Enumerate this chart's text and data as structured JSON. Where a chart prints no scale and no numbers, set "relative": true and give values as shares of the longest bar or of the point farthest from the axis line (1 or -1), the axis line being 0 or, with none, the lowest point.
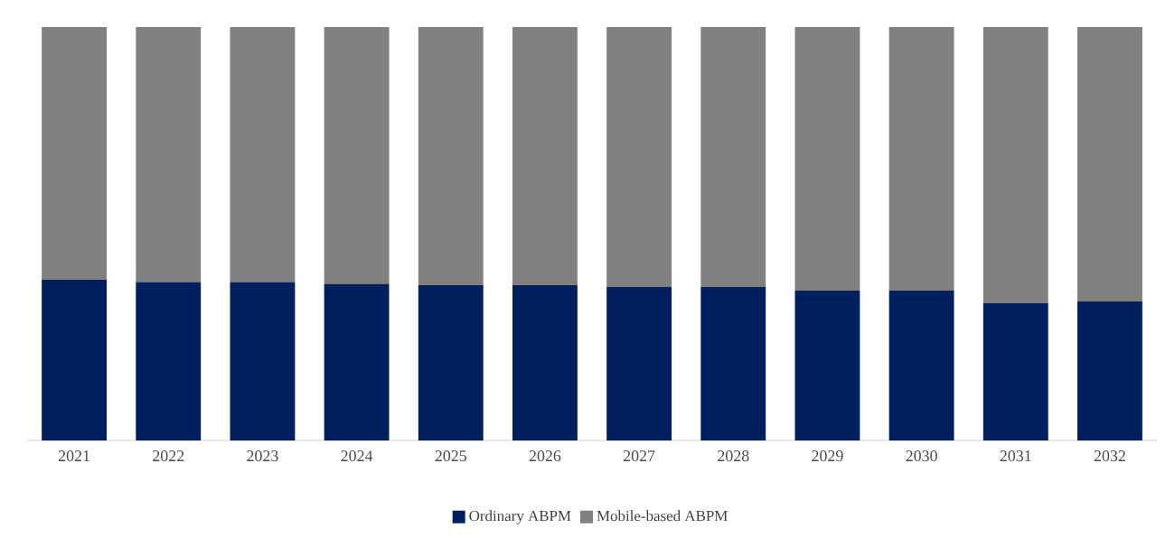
{
  "chart_data": {
    "type": "bar",
    "stacked": true,
    "relative": true,
    "legend": "bottom",
    "categories": [
      "2021",
      "2022",
      "2023",
      "2024",
      "2025",
      "2026",
      "2027",
      "2028",
      "2029",
      "2030",
      "2031",
      "2032"
    ],
    "series": [
      {
        "name": "Ordinary ABPM",
        "color": "#001f5f",
        "values": [
          0.389,
          0.383,
          0.383,
          0.379,
          0.376,
          0.376,
          0.372,
          0.372,
          0.363,
          0.363,
          0.332,
          0.336
        ]
      },
      {
        "name": "Mobile-based ABPM",
        "color": "#808080",
        "values": [
          0.611,
          0.617,
          0.617,
          0.621,
          0.624,
          0.624,
          0.628,
          0.628,
          0.637,
          0.637,
          0.668,
          0.664
        ]
      }
    ]
  }
}
